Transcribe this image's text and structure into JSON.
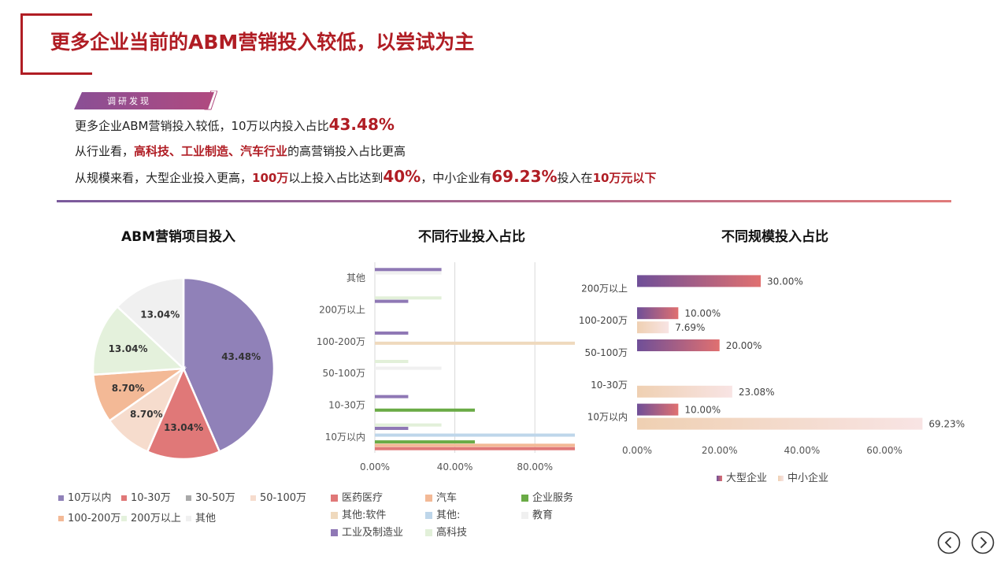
{
  "header": {
    "title": "更多企业当前的ABM营销投入较低，以尝试为主",
    "tag": "调研发现"
  },
  "findings": {
    "line1": {
      "a": "更多企业ABM营销投入较低，10万以内投入占比",
      "b": "43.48%"
    },
    "line2": {
      "a": "从行业看，",
      "b": "高科技、工业制造、汽车行业",
      "c": "的高营销投入占比更高"
    },
    "line3": {
      "a": "从规模来看，大型企业投入更高，",
      "b": "100万",
      "c": "以上投入占比达到",
      "d": "40%",
      "e": "，中小企业有",
      "f": "69.23%",
      "g": "投入在",
      "h": "10万元以下"
    }
  },
  "chart_data": [
    {
      "type": "pie",
      "title": "ABM营销项目投入",
      "categories": [
        "10万以内",
        "10-30万",
        "30-50万",
        "50-100万",
        "100-200万",
        "200万以上",
        "其他"
      ],
      "values": [
        43.48,
        13.04,
        0,
        8.7,
        8.7,
        13.04,
        13.04
      ],
      "labels": [
        "43.48%",
        "13.04%",
        "",
        "8.70%",
        "8.70%",
        "13.04%",
        "13.04%"
      ],
      "colors": [
        "#9081b8",
        "#e07878",
        "#a9a9a9",
        "#f6dccd",
        "#f3b996",
        "#e4f1dc",
        "#f0f0f0"
      ],
      "legend_position": "bottom"
    },
    {
      "type": "bar",
      "orientation": "horizontal",
      "title": "不同行业投入占比",
      "categories": [
        "10万以内",
        "10-30万",
        "50-100万",
        "100-200万",
        "200万以上",
        "其他"
      ],
      "series": [
        {
          "name": "医药医疗",
          "color": "#e07878",
          "values": [
            100,
            0,
            0,
            0,
            0,
            0
          ]
        },
        {
          "name": "汽车",
          "color": "#f3b996",
          "values": [
            100,
            0,
            0,
            0,
            0,
            0
          ]
        },
        {
          "name": "企业服务",
          "color": "#6aab46",
          "values": [
            50,
            50,
            0,
            0,
            0,
            0
          ]
        },
        {
          "name": "其他:软件",
          "color": "#efd9bd",
          "values": [
            0,
            0,
            0,
            100,
            0,
            0
          ]
        },
        {
          "name": "其他:",
          "color": "#bed6ea",
          "values": [
            100,
            0,
            0,
            0,
            0,
            0
          ]
        },
        {
          "name": "教育",
          "color": "#f0f0f0",
          "values": [
            0,
            0,
            33.3,
            0,
            0,
            33.3
          ]
        },
        {
          "name": "工业及制造业",
          "color": "#8f78b5",
          "values": [
            16.7,
            16.7,
            0,
            16.7,
            16.7,
            33.3
          ]
        },
        {
          "name": "高科技",
          "color": "#e2f0d9",
          "values": [
            33.3,
            0,
            16.7,
            0,
            33.3,
            0
          ]
        }
      ],
      "x_ticks": [
        "0.00%",
        "40.00%",
        "80.00%"
      ],
      "xlim": [
        0,
        100
      ],
      "grid": true,
      "legend_position": "bottom"
    },
    {
      "type": "bar",
      "orientation": "horizontal",
      "title": "不同规模投入占比",
      "categories": [
        "10万以内",
        "10-30万",
        "50-100万",
        "100-200万",
        "200万以上"
      ],
      "series": [
        {
          "name": "大型企业",
          "color": "#7a5a9c",
          "values": [
            10.0,
            null,
            20.0,
            10.0,
            30.0
          ],
          "labels": [
            "10.00%",
            "",
            "20.00%",
            "10.00%",
            "30.00%"
          ]
        },
        {
          "name": "中小企业",
          "color": "#f2d3be",
          "values": [
            69.23,
            23.08,
            null,
            7.69,
            null
          ],
          "labels": [
            "69.23%",
            "23.08%",
            "",
            "7.69%",
            ""
          ]
        }
      ],
      "x_ticks": [
        "0.00%",
        "20.00%",
        "40.00%",
        "60.00%"
      ],
      "xlim": [
        0,
        70
      ],
      "grid": false,
      "legend_position": "bottom"
    }
  ],
  "nav": {
    "prev_icon": "chevron-left-circle-icon",
    "next_icon": "chevron-right-circle-icon"
  }
}
